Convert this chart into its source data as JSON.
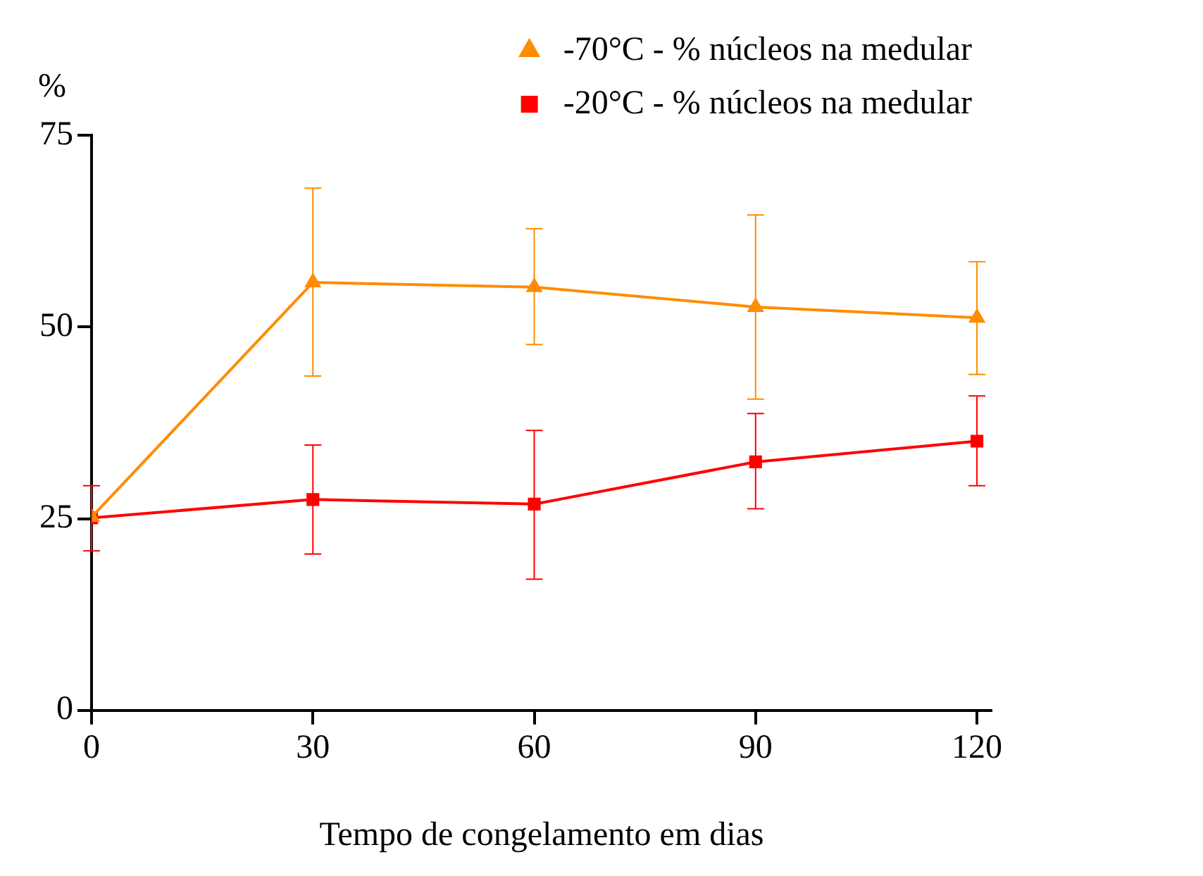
{
  "chart_data": {
    "type": "line",
    "xlabel": "Tempo de congelamento em dias",
    "ylabel": "%",
    "x": [
      0,
      30,
      60,
      90,
      120
    ],
    "xlim": [
      0,
      122
    ],
    "xticks": [
      0,
      30,
      60,
      90,
      120
    ],
    "ylim": [
      0,
      75
    ],
    "yticks": [
      0,
      25,
      50,
      75
    ],
    "grid": false,
    "legend": "top right",
    "series": [
      {
        "name": "-70°C - % núcleos na medular",
        "color": "#ff8c00",
        "marker": "triangle",
        "values": [
          25.2,
          55.8,
          55.2,
          52.6,
          51.2
        ],
        "errors": [
          null,
          [
            43.6,
            68.1
          ],
          [
            47.7,
            62.8
          ],
          [
            40.6,
            64.6
          ],
          [
            43.8,
            58.5
          ]
        ]
      },
      {
        "name": "-20°C - % núcleos na medular",
        "color": "#ff0000",
        "marker": "square",
        "values": [
          25.1,
          27.5,
          26.9,
          32.4,
          35.1
        ],
        "errors": [
          [
            20.8,
            29.3
          ],
          [
            20.4,
            34.6
          ],
          [
            17.1,
            36.5
          ],
          [
            26.3,
            38.7
          ],
          [
            29.3,
            41.0
          ]
        ]
      }
    ]
  }
}
